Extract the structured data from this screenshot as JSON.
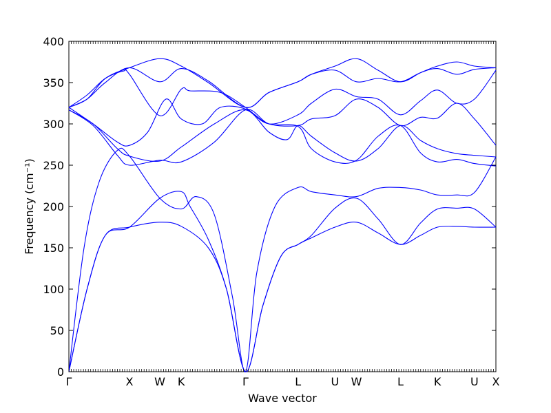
{
  "chart_data": {
    "type": "line",
    "title": "",
    "xlabel": "Wave vector",
    "ylabel": "Frequency (cm⁻¹)",
    "ylim": [
      0,
      400
    ],
    "yticks": [
      0,
      50,
      100,
      150,
      200,
      250,
      300,
      350,
      400
    ],
    "x_labels": [
      "Γ",
      "X",
      "W",
      "K",
      "Γ",
      "L",
      "U",
      "W",
      "L",
      "K",
      "U",
      "X"
    ],
    "x_label_positions": [
      0,
      1.0,
      1.5,
      1.854,
      2.914,
      3.78,
      4.39,
      4.744,
      5.47,
      6.08,
      6.69,
      7.044
    ],
    "xlim": [
      0,
      7.044
    ],
    "grid": false,
    "legend": "none",
    "line_color": "#0000ff",
    "series": [
      {
        "values": [
          [
            0,
            320
          ],
          [
            0.3,
            330
          ],
          [
            0.6,
            355
          ],
          [
            1.0,
            368
          ],
          [
            1.5,
            379
          ],
          [
            1.854,
            370
          ],
          [
            2.3,
            350
          ],
          [
            2.914,
            320
          ],
          [
            3.3,
            338
          ],
          [
            3.78,
            351
          ],
          [
            4.0,
            360
          ],
          [
            4.39,
            370
          ],
          [
            4.744,
            379
          ],
          [
            5.1,
            365
          ],
          [
            5.47,
            351
          ],
          [
            5.8,
            362
          ],
          [
            6.08,
            370
          ],
          [
            6.4,
            375
          ],
          [
            6.69,
            370
          ],
          [
            7.044,
            368
          ]
        ]
      },
      {
        "values": [
          [
            0,
            320
          ],
          [
            0.3,
            330
          ],
          [
            0.6,
            350
          ],
          [
            1.0,
            368
          ],
          [
            1.5,
            351
          ],
          [
            1.854,
            367
          ],
          [
            2.3,
            352
          ],
          [
            2.914,
            320
          ],
          [
            3.3,
            338
          ],
          [
            3.78,
            351
          ],
          [
            4.0,
            360
          ],
          [
            4.39,
            365
          ],
          [
            4.744,
            351
          ],
          [
            5.1,
            355
          ],
          [
            5.47,
            351
          ],
          [
            5.8,
            362
          ],
          [
            6.08,
            367
          ],
          [
            6.4,
            360
          ],
          [
            6.69,
            366
          ],
          [
            7.044,
            368
          ]
        ]
      },
      {
        "values": [
          [
            0,
            320
          ],
          [
            0.3,
            335
          ],
          [
            0.6,
            355
          ],
          [
            0.9,
            364
          ],
          [
            1.0,
            360
          ],
          [
            1.5,
            310
          ],
          [
            1.854,
            342
          ],
          [
            2.0,
            340
          ],
          [
            2.5,
            338
          ],
          [
            2.914,
            320
          ],
          [
            3.3,
            300
          ],
          [
            3.78,
            311
          ],
          [
            4.0,
            325
          ],
          [
            4.39,
            342
          ],
          [
            4.744,
            333
          ],
          [
            5.1,
            330
          ],
          [
            5.47,
            311
          ],
          [
            5.8,
            328
          ],
          [
            6.08,
            341
          ],
          [
            6.4,
            325
          ],
          [
            6.69,
            330
          ],
          [
            7.044,
            365
          ]
        ]
      },
      {
        "values": [
          [
            0,
            320
          ],
          [
            0.4,
            300
          ],
          [
            0.8,
            278
          ],
          [
            1.0,
            274
          ],
          [
            1.3,
            290
          ],
          [
            1.6,
            330
          ],
          [
            1.854,
            306
          ],
          [
            2.2,
            300
          ],
          [
            2.5,
            320
          ],
          [
            2.914,
            318
          ],
          [
            3.3,
            300
          ],
          [
            3.78,
            298
          ],
          [
            4.0,
            306
          ],
          [
            4.39,
            310
          ],
          [
            4.744,
            330
          ],
          [
            5.1,
            320
          ],
          [
            5.47,
            298
          ],
          [
            5.8,
            308
          ],
          [
            6.08,
            307
          ],
          [
            6.4,
            325
          ],
          [
            6.69,
            306
          ],
          [
            7.044,
            274
          ]
        ]
      },
      {
        "values": [
          [
            0,
            317
          ],
          [
            0.4,
            300
          ],
          [
            0.8,
            270
          ],
          [
            1.0,
            261
          ],
          [
            1.5,
            255
          ],
          [
            1.854,
            272
          ],
          [
            2.4,
            300
          ],
          [
            2.914,
            317
          ],
          [
            3.3,
            290
          ],
          [
            3.6,
            281
          ],
          [
            3.78,
            298
          ],
          [
            4.0,
            285
          ],
          [
            4.39,
            265
          ],
          [
            4.744,
            255
          ],
          [
            5.1,
            270
          ],
          [
            5.47,
            298
          ],
          [
            5.8,
            280
          ],
          [
            6.08,
            270
          ],
          [
            6.4,
            264
          ],
          [
            6.69,
            262
          ],
          [
            7.044,
            260
          ]
        ]
      },
      {
        "values": [
          [
            0,
            317
          ],
          [
            0.4,
            298
          ],
          [
            0.8,
            262
          ],
          [
            1.0,
            250
          ],
          [
            1.5,
            256
          ],
          [
            1.854,
            254
          ],
          [
            2.4,
            278
          ],
          [
            2.914,
            317
          ],
          [
            3.3,
            300
          ],
          [
            3.78,
            297
          ],
          [
            4.0,
            270
          ],
          [
            4.39,
            254
          ],
          [
            4.744,
            256
          ],
          [
            5.1,
            285
          ],
          [
            5.47,
            298
          ],
          [
            5.8,
            265
          ],
          [
            6.08,
            254
          ],
          [
            6.4,
            257
          ],
          [
            6.69,
            252
          ],
          [
            7.044,
            249
          ]
        ]
      },
      {
        "values": [
          [
            0,
            0
          ],
          [
            0.3,
            100
          ],
          [
            0.6,
            165
          ],
          [
            1.0,
            175
          ],
          [
            1.5,
            181
          ],
          [
            1.854,
            176
          ],
          [
            2.3,
            150
          ],
          [
            2.6,
            100
          ],
          [
            2.914,
            0
          ],
          [
            3.2,
            80
          ],
          [
            3.5,
            140
          ],
          [
            3.78,
            154
          ],
          [
            4.0,
            162
          ],
          [
            4.39,
            175
          ],
          [
            4.744,
            181
          ],
          [
            5.1,
            168
          ],
          [
            5.47,
            154
          ],
          [
            5.8,
            165
          ],
          [
            6.08,
            175
          ],
          [
            6.4,
            176
          ],
          [
            6.69,
            175
          ],
          [
            7.044,
            175
          ]
        ]
      },
      {
        "values": [
          [
            0,
            0
          ],
          [
            0.3,
            100
          ],
          [
            0.6,
            165
          ],
          [
            1.0,
            175
          ],
          [
            1.5,
            210
          ],
          [
            1.854,
            218
          ],
          [
            2.0,
            200
          ],
          [
            2.3,
            160
          ],
          [
            2.6,
            100
          ],
          [
            2.914,
            0
          ],
          [
            3.2,
            80
          ],
          [
            3.5,
            140
          ],
          [
            3.78,
            154
          ],
          [
            4.0,
            165
          ],
          [
            4.39,
            198
          ],
          [
            4.744,
            210
          ],
          [
            5.1,
            185
          ],
          [
            5.47,
            154
          ],
          [
            5.8,
            180
          ],
          [
            6.08,
            197
          ],
          [
            6.4,
            198
          ],
          [
            6.69,
            197
          ],
          [
            7.044,
            175
          ]
        ]
      },
      {
        "values": [
          [
            0,
            0
          ],
          [
            0.25,
            150
          ],
          [
            0.5,
            230
          ],
          [
            0.8,
            268
          ],
          [
            1.0,
            261
          ],
          [
            1.5,
            210
          ],
          [
            1.854,
            197
          ],
          [
            2.1,
            212
          ],
          [
            2.4,
            190
          ],
          [
            2.7,
            90
          ],
          [
            2.914,
            0
          ],
          [
            3.1,
            120
          ],
          [
            3.4,
            200
          ],
          [
            3.78,
            223
          ],
          [
            4.0,
            218
          ],
          [
            4.39,
            214
          ],
          [
            4.744,
            212
          ],
          [
            5.1,
            222
          ],
          [
            5.47,
            223
          ],
          [
            5.8,
            220
          ],
          [
            6.08,
            214
          ],
          [
            6.4,
            214
          ],
          [
            6.69,
            217
          ],
          [
            7.044,
            260
          ]
        ]
      }
    ]
  }
}
